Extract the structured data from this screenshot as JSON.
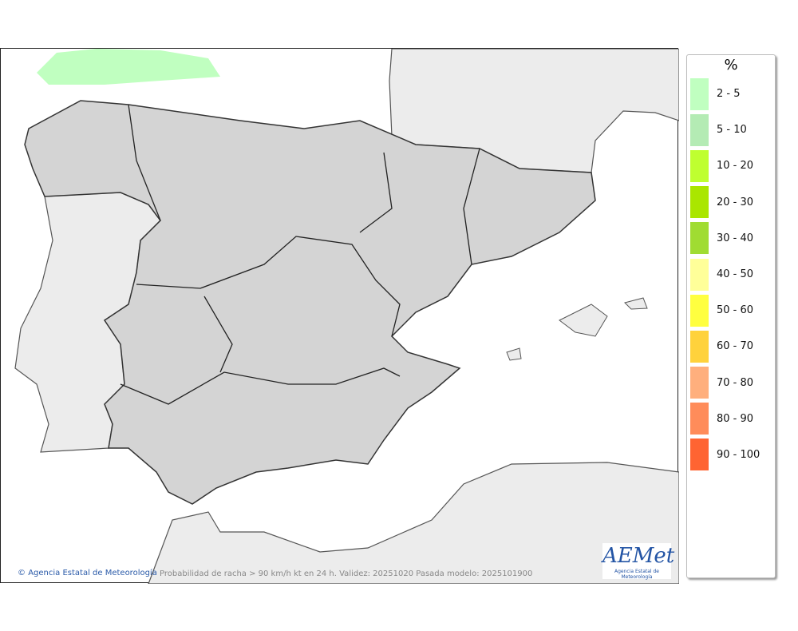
{
  "legend": {
    "title": "%",
    "items": [
      {
        "label": "2 - 5",
        "color": "#c0ffc0"
      },
      {
        "label": "5 - 10",
        "color": "#b4ebb4"
      },
      {
        "label": "10 - 20",
        "color": "#bfff30"
      },
      {
        "label": "20 - 30",
        "color": "#aae600"
      },
      {
        "label": "30 - 40",
        "color": "#a0dc32"
      },
      {
        "label": "40 - 50",
        "color": "#ffff99"
      },
      {
        "label": "50 - 60",
        "color": "#ffff40"
      },
      {
        "label": "60 - 70",
        "color": "#ffd23c"
      },
      {
        "label": "70 - 80",
        "color": "#ffaf7d"
      },
      {
        "label": "80 - 90",
        "color": "#ff8c5a"
      },
      {
        "label": "90 - 100",
        "color": "#ff6432"
      }
    ]
  },
  "footer": {
    "credit": "Agencia Estatal de Meteorología",
    "caption": "Probabilidad de racha > 90 km/h kt en 24 h. Validez: 20251020 Pasada modelo: 2025101900"
  },
  "logo": {
    "text": "AEMet",
    "subtitle": "Agencia Estatal de Meteorología"
  }
}
